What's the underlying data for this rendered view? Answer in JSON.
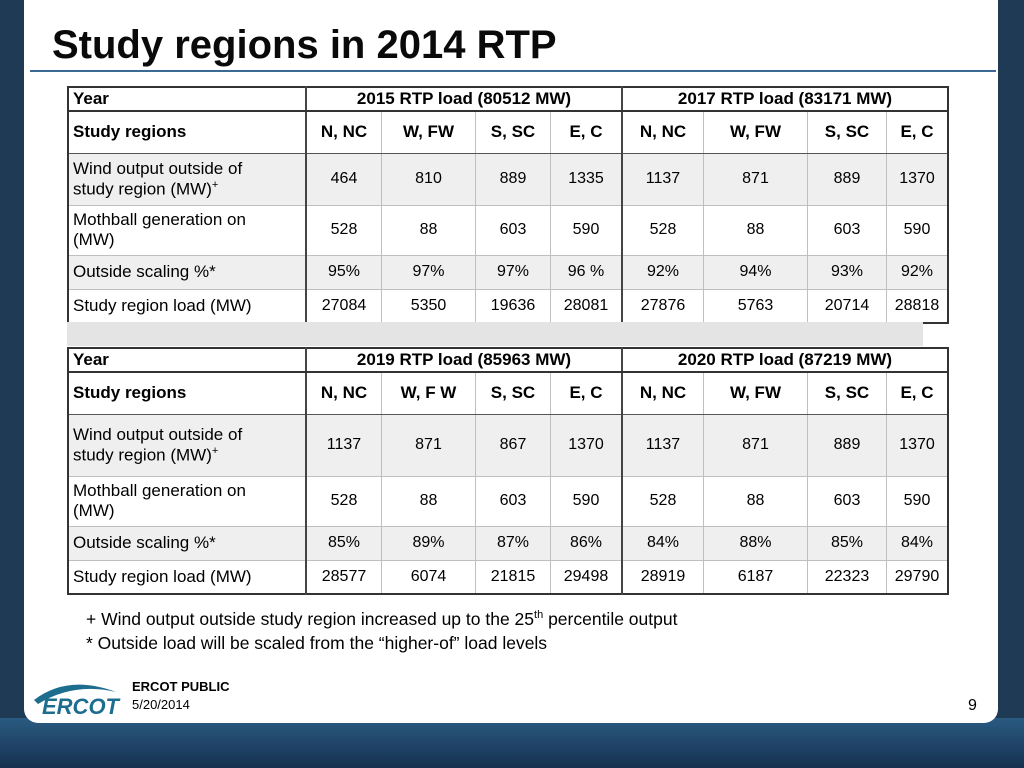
{
  "title": "Study regions in 2014 RTP",
  "table1": {
    "year_label": "Year",
    "group_a": "2015 RTP load (80512 MW)",
    "group_b": "2017 RTP load (83171 MW)",
    "regions_label": "Study regions",
    "regions": [
      "N, NC",
      "W, FW",
      "S, SC",
      "E, C",
      "N, NC",
      "W, FW",
      "S, SC",
      "E, C"
    ],
    "rows": [
      {
        "label_line1": "Wind output outside of",
        "label_line2": "study region (MW)",
        "mark": "+",
        "values": [
          "464",
          "810",
          "889",
          "1335",
          "1137",
          "871",
          "889",
          "1370"
        ]
      },
      {
        "label_line1": "Mothball generation on",
        "label_line2": "(MW)",
        "mark": "",
        "values": [
          "528",
          "88",
          "603",
          "590",
          "528",
          "88",
          "603",
          "590"
        ]
      },
      {
        "label_line1": "Outside scaling %*",
        "label_line2": "",
        "mark": "",
        "values": [
          "95%",
          "97%",
          "97%",
          "96 %",
          "92%",
          "94%",
          "93%",
          "92%"
        ]
      },
      {
        "label_line1": "Study region load (MW)",
        "label_line2": "",
        "mark": "",
        "values": [
          "27084",
          "5350",
          "19636",
          "28081",
          "27876",
          "5763",
          "20714",
          "28818"
        ]
      }
    ]
  },
  "table2": {
    "year_label": "Year",
    "group_a": "2019 RTP load (85963 MW)",
    "group_b": "2020 RTP load (87219 MW)",
    "regions_label": "Study regions",
    "regions": [
      "N, NC",
      "W, F W",
      "S, SC",
      "E, C",
      "N, NC",
      "W, FW",
      "S, SC",
      "E, C"
    ],
    "rows": [
      {
        "label_line1": "Wind output outside of",
        "label_line2": "study region (MW)",
        "mark": "+",
        "values": [
          "1137",
          "871",
          "867",
          "1370",
          "1137",
          "871",
          "889",
          "1370"
        ]
      },
      {
        "label_line1": "Mothball generation on",
        "label_line2": "(MW)",
        "mark": "",
        "values": [
          "528",
          "88",
          "603",
          "590",
          "528",
          "88",
          "603",
          "590"
        ]
      },
      {
        "label_line1": "Outside scaling %*",
        "label_line2": "",
        "mark": "",
        "values": [
          "85%",
          "89%",
          "87%",
          "86%",
          "84%",
          "88%",
          "85%",
          "84%"
        ]
      },
      {
        "label_line1": "Study region load (MW)",
        "label_line2": "",
        "mark": "",
        "values": [
          "28577",
          "6074",
          "21815",
          "29498",
          "28919",
          "6187",
          "22323",
          "29790"
        ]
      }
    ]
  },
  "notes": {
    "note1_pre": "+ Wind output outside study region increased up to the 25",
    "note1_sup": "th",
    "note1_post": " percentile output",
    "note2": "* Outside load will be scaled from the “higher-of” load levels"
  },
  "footer": {
    "logo_text": "ERCOT",
    "public_label": "ERCOT PUBLIC",
    "date": "5/20/2014",
    "page_number": "9"
  },
  "colors": {
    "frame": "#1e3a55",
    "logo_blue": "#1d6d8f",
    "title_rule": "#3a6a93"
  }
}
